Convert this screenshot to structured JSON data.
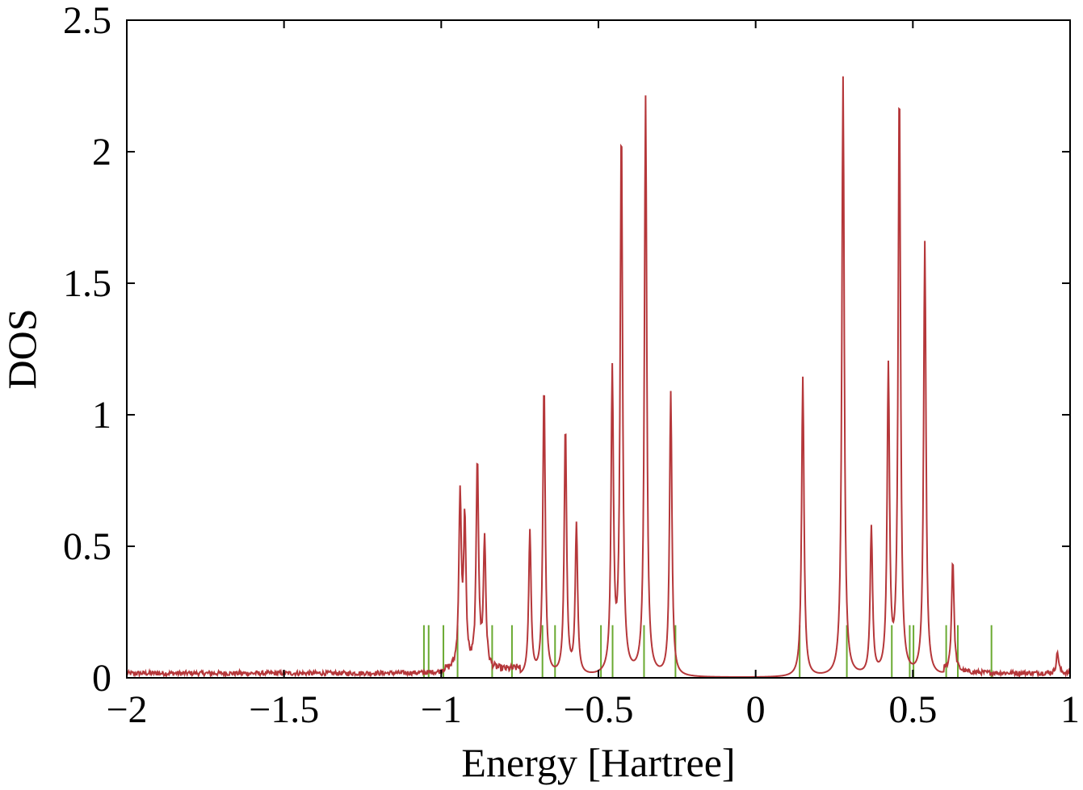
{
  "chart_data": {
    "type": "line",
    "title": "",
    "xlabel": "Energy [Hartree]",
    "ylabel": "DOS",
    "xlim": [
      -2,
      1
    ],
    "ylim": [
      0,
      2.5
    ],
    "grid": false,
    "legend": "none",
    "xticks": [
      -2,
      -1.5,
      -1,
      -0.5,
      0,
      0.5,
      1
    ],
    "xtick_labels": [
      "−2",
      "−1.5",
      "−1",
      "−0.5",
      "0",
      "0.5",
      "1"
    ],
    "yticks": [
      0,
      0.5,
      1,
      1.5,
      2,
      2.5
    ],
    "ytick_labels": [
      "0",
      "0.5",
      "1",
      "1.5",
      "2",
      "2.5"
    ],
    "series": [
      {
        "color": "#b5373a",
        "peak_width": 0.0045,
        "noise_regions": [
          {
            "from": -2.0,
            "to": -1.0,
            "level": 0.02
          },
          {
            "from": -1.0,
            "to": -0.75,
            "level": 0.03
          },
          {
            "from": 0.6,
            "to": 1.0,
            "level": 0.02
          }
        ],
        "peaks": [
          {
            "x": -0.94,
            "y": 0.66
          },
          {
            "x": -0.925,
            "y": 0.56
          },
          {
            "x": -0.885,
            "y": 0.8
          },
          {
            "x": -0.862,
            "y": 0.49
          },
          {
            "x": -0.718,
            "y": 0.55
          },
          {
            "x": -0.673,
            "y": 1.11
          },
          {
            "x": -0.605,
            "y": 0.95
          },
          {
            "x": -0.57,
            "y": 0.57
          },
          {
            "x": -0.456,
            "y": 1.14
          },
          {
            "x": -0.427,
            "y": 2.08
          },
          {
            "x": -0.35,
            "y": 2.2
          },
          {
            "x": -0.27,
            "y": 1.08
          },
          {
            "x": 0.15,
            "y": 1.14
          },
          {
            "x": 0.278,
            "y": 2.28
          },
          {
            "x": 0.368,
            "y": 0.56
          },
          {
            "x": 0.422,
            "y": 1.16
          },
          {
            "x": 0.457,
            "y": 2.24
          },
          {
            "x": 0.538,
            "y": 1.65
          },
          {
            "x": 0.627,
            "y": 0.43
          },
          {
            "x": 0.96,
            "y": 0.08
          }
        ]
      },
      {
        "color": "#6aaa32",
        "type": "sticks",
        "height": 0.2,
        "x": [
          -1.055,
          -1.04,
          -0.993,
          -0.948,
          -0.838,
          -0.775,
          -0.678,
          -0.638,
          -0.492,
          -0.455,
          -0.355,
          -0.255,
          0.14,
          0.29,
          0.433,
          0.49,
          0.502,
          0.606,
          0.643,
          0.75
        ]
      }
    ]
  }
}
